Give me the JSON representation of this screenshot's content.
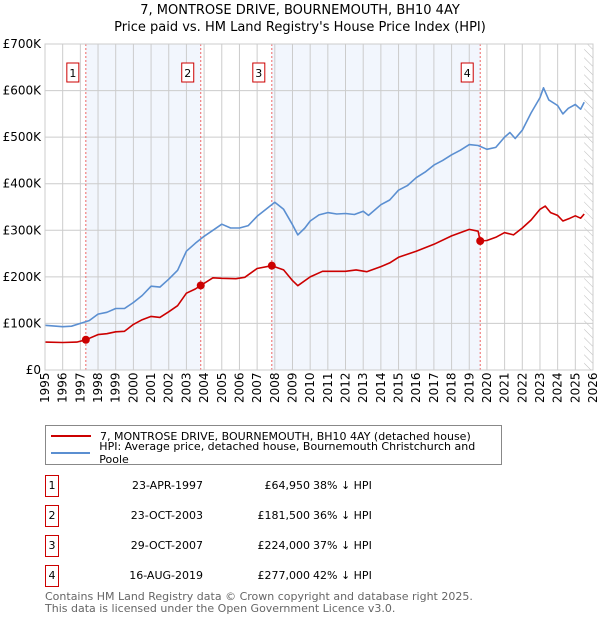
{
  "chart_data": {
    "type": "line",
    "title": "7, MONTROSE DRIVE, BOURNEMOUTH, BH10 4AY",
    "subtitle": "Price paid vs. HM Land Registry's House Price Index (HPI)",
    "xlim": [
      1995,
      2026
    ],
    "ylim": [
      0,
      700000
    ],
    "x_ticks": [
      "1995",
      "1996",
      "1997",
      "1998",
      "1999",
      "2000",
      "2001",
      "2002",
      "2003",
      "2004",
      "2005",
      "2006",
      "2007",
      "2008",
      "2009",
      "2010",
      "2011",
      "2012",
      "2013",
      "2014",
      "2015",
      "2016",
      "2017",
      "2018",
      "2019",
      "2020",
      "2021",
      "2022",
      "2023",
      "2024",
      "2025",
      "2026"
    ],
    "y_ticks": [
      {
        "v": 0,
        "label": "£0"
      },
      {
        "v": 100000,
        "label": "£100K"
      },
      {
        "v": 200000,
        "label": "£200K"
      },
      {
        "v": 300000,
        "label": "£300K"
      },
      {
        "v": 400000,
        "label": "£400K"
      },
      {
        "v": 500000,
        "label": "£500K"
      },
      {
        "v": 600000,
        "label": "£600K"
      },
      {
        "v": 700000,
        "label": "£700K"
      }
    ],
    "grid": true,
    "shaded_periods": [
      [
        1997.31,
        2003.81
      ],
      [
        2007.83,
        2019.62
      ]
    ],
    "forecast_hatch_from": 2025.5,
    "series": [
      {
        "name": "7, MONTROSE DRIVE, BOURNEMOUTH, BH10 4AY (detached house)",
        "color": "#cc0000",
        "points": [
          [
            1995,
            60
          ],
          [
            1996,
            59
          ],
          [
            1996.8,
            60
          ],
          [
            1997.31,
            64.95
          ],
          [
            1998,
            76
          ],
          [
            1998.5,
            78
          ],
          [
            1999,
            82
          ],
          [
            1999.5,
            83
          ],
          [
            2000,
            98
          ],
          [
            2000.5,
            108
          ],
          [
            2001,
            115
          ],
          [
            2001.5,
            113
          ],
          [
            2002,
            125
          ],
          [
            2002.5,
            138
          ],
          [
            2003,
            165
          ],
          [
            2003.5,
            174
          ],
          [
            2003.81,
            181.5
          ],
          [
            2004.5,
            198
          ],
          [
            2005,
            197
          ],
          [
            2005.8,
            196
          ],
          [
            2006.3,
            199
          ],
          [
            2007,
            218
          ],
          [
            2007.83,
            224
          ],
          [
            2008.5,
            215
          ],
          [
            2009,
            192
          ],
          [
            2009.3,
            181
          ],
          [
            2010,
            200
          ],
          [
            2010.7,
            212
          ],
          [
            2011.2,
            212
          ],
          [
            2012,
            212
          ],
          [
            2012.6,
            215
          ],
          [
            2013.2,
            211
          ],
          [
            2014,
            222
          ],
          [
            2014.5,
            230
          ],
          [
            2015,
            242
          ],
          [
            2016,
            255
          ],
          [
            2017,
            270
          ],
          [
            2018,
            288
          ],
          [
            2019,
            302
          ],
          [
            2019.5,
            298
          ],
          [
            2019.62,
            277
          ],
          [
            2020,
            278
          ],
          [
            2020.5,
            285
          ],
          [
            2021,
            295
          ],
          [
            2021.5,
            290
          ],
          [
            2022,
            305
          ],
          [
            2022.5,
            322
          ],
          [
            2023,
            345
          ],
          [
            2023.3,
            352
          ],
          [
            2023.6,
            338
          ],
          [
            2024,
            332
          ],
          [
            2024.3,
            320
          ],
          [
            2024.7,
            326
          ],
          [
            2025,
            331
          ],
          [
            2025.3,
            326
          ],
          [
            2025.5,
            335
          ]
        ]
      },
      {
        "name": "HPI: Average price, detached house, Bournemouth Christchurch and Poole",
        "color": "#5b8fd1",
        "points": [
          [
            1995,
            96
          ],
          [
            1996,
            93
          ],
          [
            1996.5,
            94
          ],
          [
            1997,
            100
          ],
          [
            1997.5,
            106
          ],
          [
            1998,
            120
          ],
          [
            1998.5,
            124
          ],
          [
            1999,
            132
          ],
          [
            1999.5,
            132
          ],
          [
            2000,
            145
          ],
          [
            2000.5,
            160
          ],
          [
            2001,
            180
          ],
          [
            2001.5,
            178
          ],
          [
            2002,
            195
          ],
          [
            2002.5,
            214
          ],
          [
            2003,
            255
          ],
          [
            2003.5,
            272
          ],
          [
            2004,
            287
          ],
          [
            2004.5,
            300
          ],
          [
            2005,
            313
          ],
          [
            2005.5,
            305
          ],
          [
            2006,
            305
          ],
          [
            2006.5,
            310
          ],
          [
            2007,
            330
          ],
          [
            2007.5,
            345
          ],
          [
            2008,
            360
          ],
          [
            2008.5,
            345
          ],
          [
            2009,
            312
          ],
          [
            2009.3,
            290
          ],
          [
            2009.7,
            305
          ],
          [
            2010,
            320
          ],
          [
            2010.5,
            333
          ],
          [
            2011,
            338
          ],
          [
            2011.5,
            335
          ],
          [
            2012,
            336
          ],
          [
            2012.5,
            334
          ],
          [
            2013,
            341
          ],
          [
            2013.3,
            332
          ],
          [
            2014,
            355
          ],
          [
            2014.5,
            365
          ],
          [
            2015,
            386
          ],
          [
            2015.5,
            396
          ],
          [
            2016,
            413
          ],
          [
            2016.5,
            425
          ],
          [
            2017,
            440
          ],
          [
            2017.5,
            450
          ],
          [
            2018,
            462
          ],
          [
            2018.5,
            472
          ],
          [
            2019,
            484
          ],
          [
            2019.5,
            482
          ],
          [
            2020,
            474
          ],
          [
            2020.5,
            478
          ],
          [
            2021,
            500
          ],
          [
            2021.3,
            510
          ],
          [
            2021.6,
            497
          ],
          [
            2022,
            515
          ],
          [
            2022.5,
            552
          ],
          [
            2023,
            585
          ],
          [
            2023.2,
            606
          ],
          [
            2023.5,
            580
          ],
          [
            2024,
            568
          ],
          [
            2024.3,
            550
          ],
          [
            2024.6,
            562
          ],
          [
            2025,
            570
          ],
          [
            2025.3,
            560
          ],
          [
            2025.5,
            575
          ]
        ]
      }
    ],
    "markers": [
      {
        "label": "1",
        "x": 1997.31,
        "y": 64.95
      },
      {
        "label": "2",
        "x": 2003.81,
        "y": 181.5
      },
      {
        "label": "3",
        "x": 2007.83,
        "y": 224
      },
      {
        "label": "4",
        "x": 2019.62,
        "y": 277
      }
    ]
  },
  "legend": {
    "red": "7, MONTROSE DRIVE, BOURNEMOUTH, BH10 4AY (detached house)",
    "blue": "HPI: Average price, detached house, Bournemouth Christchurch and Poole"
  },
  "transactions": [
    {
      "num": "1",
      "date": "23-APR-1997",
      "price": "£64,950",
      "hpi": "38% ↓ HPI"
    },
    {
      "num": "2",
      "date": "23-OCT-2003",
      "price": "£181,500",
      "hpi": "36% ↓ HPI"
    },
    {
      "num": "3",
      "date": "29-OCT-2007",
      "price": "£224,000",
      "hpi": "37% ↓ HPI"
    },
    {
      "num": "4",
      "date": "16-AUG-2019",
      "price": "£277,000",
      "hpi": "42% ↓ HPI"
    }
  ],
  "footer": {
    "line1": "Contains HM Land Registry data © Crown copyright and database right 2025.",
    "line2": "This data is licensed under the Open Government Licence v3.0."
  }
}
